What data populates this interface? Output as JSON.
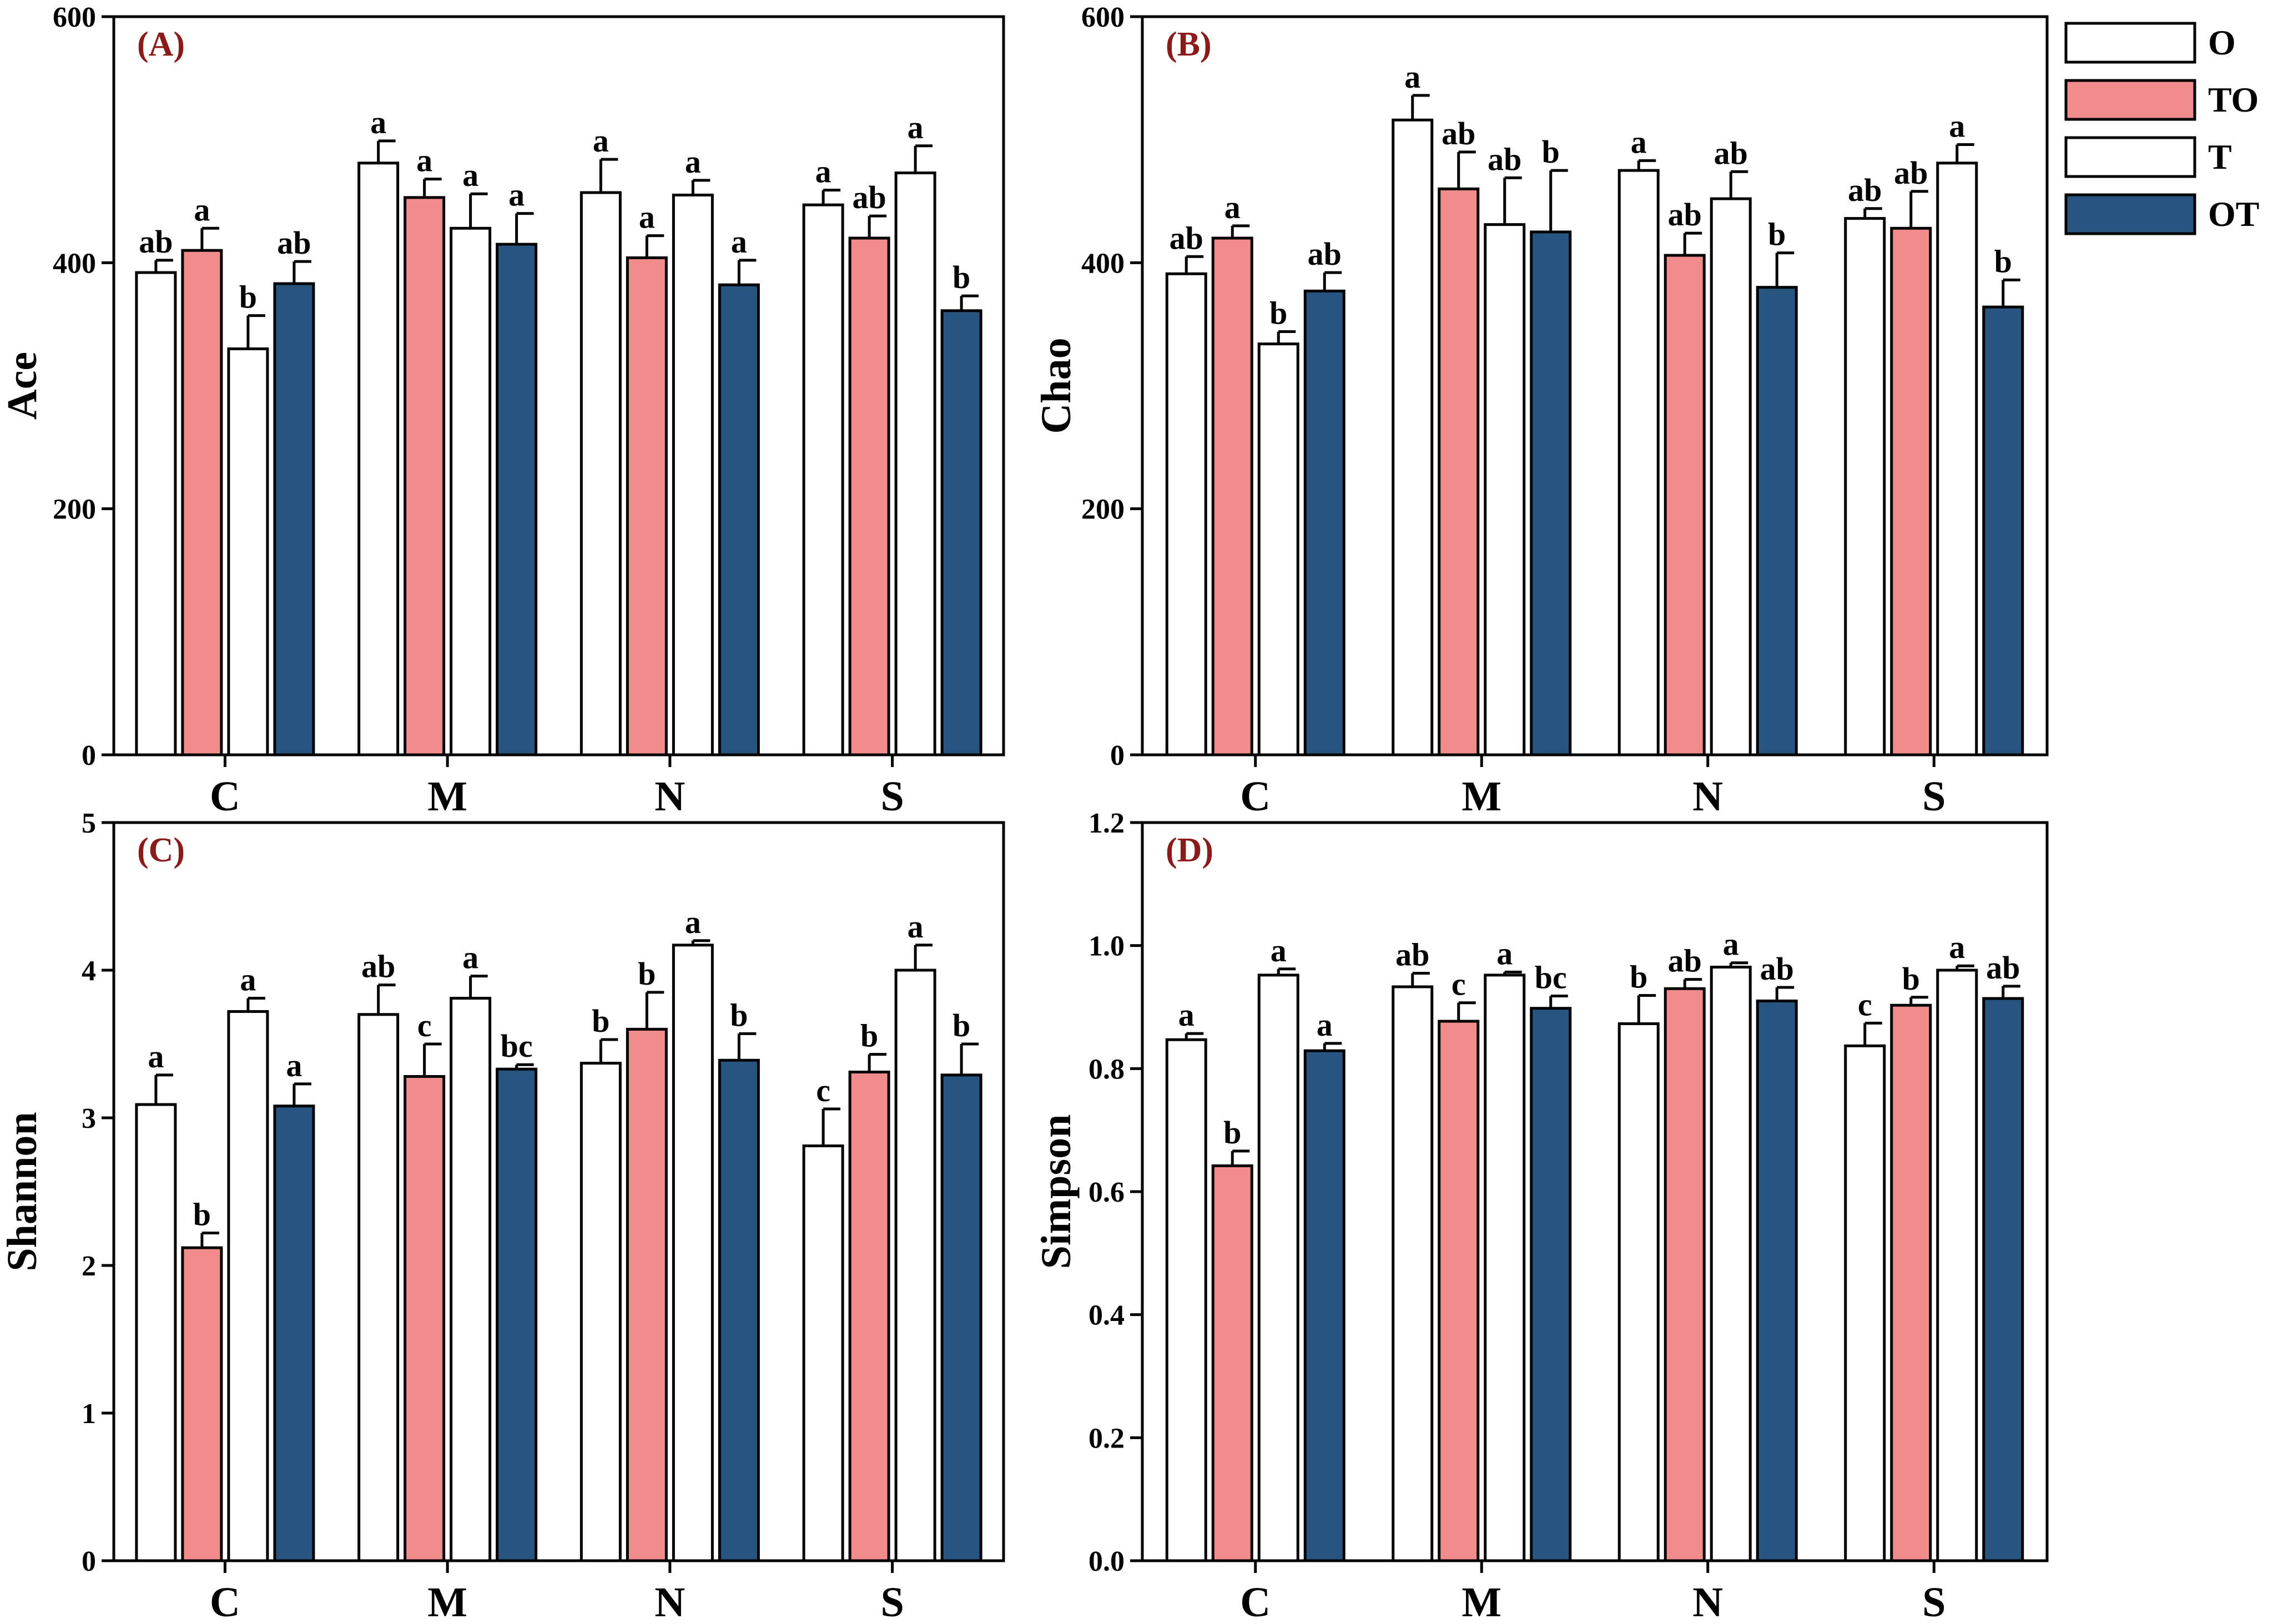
{
  "chart_data": [
    {
      "type": "bar",
      "panel_label": "(A)",
      "ylabel": "Ace",
      "ylim": [
        0,
        600
      ],
      "yticks": [
        "0",
        "200",
        "400",
        "600"
      ],
      "categories": [
        "C",
        "M",
        "N",
        "S"
      ],
      "series": [
        {
          "name": "O",
          "values": [
            392,
            481,
            457,
            447
          ],
          "errors": [
            10,
            18,
            27,
            12
          ],
          "sig": [
            "ab",
            "a",
            "a",
            "a"
          ]
        },
        {
          "name": "TO",
          "values": [
            410,
            453,
            404,
            420
          ],
          "errors": [
            18,
            15,
            18,
            18
          ],
          "sig": [
            "a",
            "a",
            "a",
            "ab"
          ]
        },
        {
          "name": "T",
          "values": [
            330,
            428,
            455,
            473
          ],
          "errors": [
            27,
            28,
            12,
            22
          ],
          "sig": [
            "b",
            "a",
            "a",
            "a"
          ]
        },
        {
          "name": "OT",
          "values": [
            383,
            415,
            382,
            361
          ],
          "errors": [
            18,
            25,
            20,
            12
          ],
          "sig": [
            "ab",
            "a",
            "a",
            "b"
          ]
        }
      ]
    },
    {
      "type": "bar",
      "panel_label": "(B)",
      "ylabel": "Chao",
      "ylim": [
        0,
        600
      ],
      "yticks": [
        "0",
        "200",
        "400",
        "600"
      ],
      "categories": [
        "C",
        "M",
        "N",
        "S"
      ],
      "series": [
        {
          "name": "O",
          "values": [
            391,
            516,
            475,
            436
          ],
          "errors": [
            14,
            20,
            8,
            8
          ],
          "sig": [
            "ab",
            "a",
            "a",
            "ab"
          ]
        },
        {
          "name": "TO",
          "values": [
            420,
            460,
            406,
            428
          ],
          "errors": [
            10,
            30,
            18,
            30
          ],
          "sig": [
            "a",
            "ab",
            "ab",
            "ab"
          ]
        },
        {
          "name": "T",
          "values": [
            334,
            431,
            452,
            481
          ],
          "errors": [
            10,
            38,
            22,
            15
          ],
          "sig": [
            "b",
            "ab",
            "ab",
            "a"
          ]
        },
        {
          "name": "OT",
          "values": [
            377,
            425,
            380,
            364
          ],
          "errors": [
            15,
            50,
            28,
            22
          ],
          "sig": [
            "ab",
            "b",
            "b",
            "b"
          ]
        }
      ]
    },
    {
      "type": "bar",
      "panel_label": "(C)",
      "ylabel": "Shannon",
      "ylim": [
        0,
        5
      ],
      "yticks": [
        "0",
        "1",
        "2",
        "3",
        "4",
        "5"
      ],
      "categories": [
        "C",
        "M",
        "N",
        "S"
      ],
      "series": [
        {
          "name": "O",
          "values": [
            3.09,
            3.7,
            3.37,
            2.81
          ],
          "errors": [
            0.2,
            0.2,
            0.16,
            0.25
          ],
          "sig": [
            "a",
            "ab",
            "b",
            "c"
          ]
        },
        {
          "name": "TO",
          "values": [
            2.12,
            3.28,
            3.6,
            3.31
          ],
          "errors": [
            0.1,
            0.22,
            0.25,
            0.12
          ],
          "sig": [
            "b",
            "c",
            "b",
            "b"
          ]
        },
        {
          "name": "T",
          "values": [
            3.72,
            3.81,
            4.17,
            4.0
          ],
          "errors": [
            0.09,
            0.15,
            0.03,
            0.17
          ],
          "sig": [
            "a",
            "a",
            "a",
            "a"
          ]
        },
        {
          "name": "OT",
          "values": [
            3.08,
            3.33,
            3.39,
            3.29
          ],
          "errors": [
            0.15,
            0.03,
            0.18,
            0.21
          ],
          "sig": [
            "a",
            "bc",
            "b",
            "b"
          ]
        }
      ]
    },
    {
      "type": "bar",
      "panel_label": "(D)",
      "ylabel": "Simpson",
      "ylim": [
        0,
        1.2
      ],
      "yticks": [
        "0.0",
        "0.2",
        "0.4",
        "0.6",
        "0.8",
        "1.0",
        "1.2"
      ],
      "categories": [
        "C",
        "M",
        "N",
        "S"
      ],
      "series": [
        {
          "name": "O",
          "values": [
            0.847,
            0.933,
            0.873,
            0.837
          ],
          "errors": [
            0.01,
            0.022,
            0.046,
            0.037
          ],
          "sig": [
            "a",
            "ab",
            "b",
            "c"
          ]
        },
        {
          "name": "TO",
          "values": [
            0.642,
            0.877,
            0.93,
            0.903
          ],
          "errors": [
            0.024,
            0.03,
            0.015,
            0.013
          ],
          "sig": [
            "b",
            "c",
            "ab",
            "b"
          ]
        },
        {
          "name": "T",
          "values": [
            0.952,
            0.952,
            0.965,
            0.96
          ],
          "errors": [
            0.01,
            0.005,
            0.007,
            0.007
          ],
          "sig": [
            "a",
            "a",
            "a",
            "a"
          ]
        },
        {
          "name": "OT",
          "values": [
            0.829,
            0.898,
            0.91,
            0.914
          ],
          "errors": [
            0.012,
            0.02,
            0.022,
            0.02
          ],
          "sig": [
            "a",
            "bc",
            "ab",
            "ab"
          ]
        }
      ]
    }
  ],
  "legend": {
    "items": [
      {
        "label": "O",
        "color": "#ffffff"
      },
      {
        "label": "TO",
        "color": "#f08c8c"
      },
      {
        "label": "T",
        "color": "#ffffff"
      },
      {
        "label": "OT",
        "color": "#285580"
      }
    ]
  }
}
